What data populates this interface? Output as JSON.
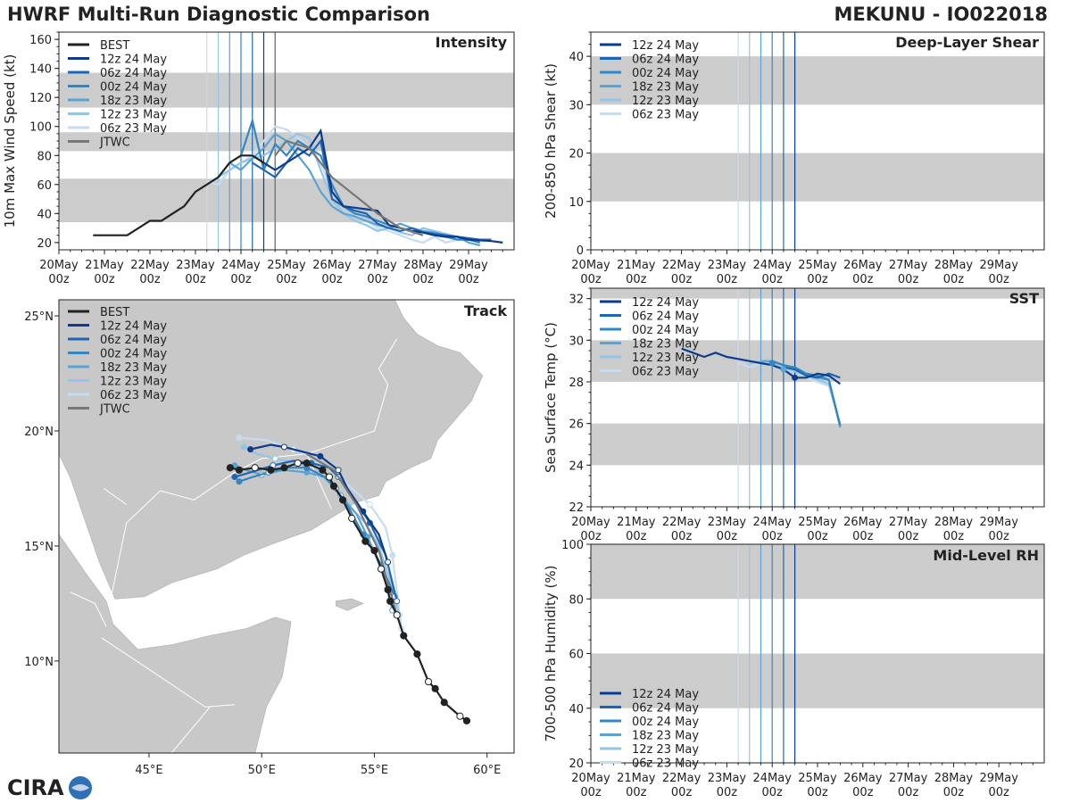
{
  "header": {
    "left_title": "HWRF Multi-Run Diagnostic Comparison",
    "right_title": "MEKUNU - IO022018"
  },
  "logo": {
    "text": "CIRA"
  },
  "colors": {
    "best": "#222222",
    "jtwc": "#777777",
    "band": "#cccccc",
    "runs": [
      "#0d3c8c",
      "#1f66b2",
      "#3586c0",
      "#5aa3d4",
      "#92c5e6",
      "#c6dcf0"
    ]
  },
  "runs": [
    "12z 24 May",
    "06z 24 May",
    "00z 24 May",
    "18z 23 May",
    "12z 23 May",
    "06z 23 May"
  ],
  "run_init_day": [
    4.5,
    4.25,
    4.0,
    3.75,
    3.5,
    3.25
  ],
  "time_axis": {
    "xlim": [
      0,
      10
    ],
    "day_labels": [
      "20May",
      "21May",
      "22May",
      "23May",
      "24May",
      "25May",
      "26May",
      "27May",
      "28May",
      "29May"
    ],
    "hour_label": "00z"
  },
  "chart_data": [
    {
      "id": "intensity",
      "type": "line",
      "title": "Intensity",
      "ylabel": "10m Max Wind Speed (kt)",
      "ylim": [
        15,
        165
      ],
      "yticks": [
        20,
        40,
        60,
        80,
        100,
        120,
        140,
        160
      ],
      "bands": [
        [
          34,
          64
        ],
        [
          83,
          96
        ],
        [
          113,
          137
        ]
      ],
      "legend": [
        "BEST",
        "12z 24 May",
        "06z 24 May",
        "00z 24 May",
        "18z 23 May",
        "12z 23 May",
        "06z 23 May",
        "JTWC"
      ],
      "best": {
        "name": "BEST",
        "x": [
          0.75,
          1,
          1.5,
          2,
          2.25,
          2.5,
          2.75,
          3,
          3.25,
          3.5,
          3.75,
          4,
          4.25,
          4.5
        ],
        "y": [
          25,
          25,
          25,
          35,
          35,
          40,
          45,
          55,
          60,
          65,
          75,
          80,
          80,
          75
        ]
      },
      "jtwc": {
        "name": "JTWC",
        "x": [
          4.75,
          5.0,
          5.5,
          6.0,
          7.0,
          7.5,
          8.0
        ],
        "y": [
          80,
          90,
          85,
          65,
          40,
          30,
          25
        ]
      },
      "series": [
        {
          "name": "12z 24 May",
          "x": [
            4.5,
            4.75,
            5,
            5.25,
            5.5,
            5.75,
            6,
            6.25,
            6.5,
            6.75,
            7,
            7.25,
            7.5,
            7.75,
            8,
            8.25,
            8.5,
            8.75,
            9,
            9.5,
            9.75
          ],
          "y": [
            75,
            70,
            75,
            80,
            85,
            97,
            55,
            45,
            44,
            43,
            42,
            32,
            30,
            28,
            27,
            25,
            24,
            24,
            22,
            21,
            20
          ]
        },
        {
          "name": "06z 24 May",
          "x": [
            4.25,
            4.5,
            4.75,
            5,
            5.25,
            5.5,
            5.75,
            6,
            6.25,
            6.5,
            6.75,
            7,
            7.25,
            7.5,
            7.75,
            8,
            8.25,
            8.5,
            8.75,
            9,
            9.25,
            9.5
          ],
          "y": [
            75,
            70,
            65,
            75,
            85,
            80,
            90,
            50,
            45,
            42,
            40,
            33,
            30,
            28,
            30,
            27,
            26,
            25,
            24,
            23,
            22,
            22
          ]
        },
        {
          "name": "00z 24 May",
          "x": [
            4,
            4.25,
            4.5,
            4.75,
            5,
            5.25,
            5.5,
            5.75,
            6,
            6.25,
            6.5,
            6.75,
            7,
            7.25,
            7.5,
            7.75,
            8,
            8.25,
            8.5,
            8.75,
            9,
            9.25
          ],
          "y": [
            80,
            104,
            70,
            88,
            80,
            90,
            85,
            80,
            60,
            45,
            40,
            38,
            35,
            32,
            30,
            28,
            27,
            25,
            24,
            22,
            22,
            20
          ]
        },
        {
          "name": "18z 23 May",
          "x": [
            3.75,
            4,
            4.25,
            4.5,
            4.75,
            5,
            5.25,
            5.5,
            5.75,
            6,
            6.25,
            6.5,
            6.75,
            7,
            7.25,
            7.5,
            7.75,
            8,
            8.25,
            8.5,
            8.75,
            9,
            9.25
          ],
          "y": [
            75,
            70,
            78,
            85,
            95,
            90,
            80,
            70,
            55,
            45,
            40,
            38,
            35,
            32,
            30,
            33,
            30,
            28,
            27,
            25,
            24,
            20,
            18
          ]
        },
        {
          "name": "12z 23 May",
          "x": [
            3.5,
            3.75,
            4,
            4.25,
            4.5,
            4.75,
            5,
            5.25,
            5.5,
            5.75,
            6,
            6.25,
            6.5,
            6.75,
            7,
            7.25,
            7.5,
            7.75,
            8,
            8.25,
            8.5,
            8.75
          ],
          "y": [
            65,
            70,
            75,
            78,
            80,
            85,
            90,
            95,
            92,
            70,
            50,
            40,
            35,
            32,
            28,
            30,
            27,
            25,
            30,
            28,
            26,
            24
          ]
        },
        {
          "name": "06z 23 May",
          "x": [
            3.25,
            3.5,
            3.75,
            4,
            4.25,
            4.5,
            4.75,
            5,
            5.25,
            5.5,
            5.75,
            6,
            6.25,
            6.5,
            6.75,
            7,
            7.25,
            7.5,
            7.75,
            8,
            8.25,
            8.5,
            8.75
          ],
          "y": [
            62,
            60,
            70,
            75,
            80,
            90,
            100,
            98,
            92,
            85,
            75,
            55,
            45,
            40,
            35,
            30,
            28,
            25,
            22,
            20,
            24,
            20,
            22
          ]
        }
      ]
    },
    {
      "id": "shear",
      "type": "line",
      "title": "Deep-Layer Shear",
      "ylabel": "200-850 hPa Shear (kt)",
      "ylim": [
        0,
        45
      ],
      "yticks": [
        0,
        10,
        20,
        30,
        40
      ],
      "bands": [
        [
          10,
          20
        ],
        [
          30,
          40
        ]
      ],
      "legend": [
        "12z 24 May",
        "06z 24 May",
        "00z 24 May",
        "18z 23 May",
        "12z 23 May",
        "06z 23 May"
      ],
      "series": []
    },
    {
      "id": "sst",
      "type": "line",
      "title": "SST",
      "ylabel": "Sea Surface Temp (°C)",
      "ylim": [
        22,
        32.5
      ],
      "yticks": [
        22,
        24,
        26,
        28,
        30,
        32
      ],
      "bands": [
        [
          24,
          26
        ],
        [
          28,
          30
        ],
        [
          32,
          33
        ]
      ],
      "legend": [
        "12z 24 May",
        "06z 24 May",
        "00z 24 May",
        "18z 23 May",
        "12z 23 May",
        "06z 23 May"
      ],
      "series": [
        {
          "name": "12z 24 May",
          "x": [
            2,
            2.25,
            2.5,
            2.75,
            3,
            3.25,
            3.5,
            3.75,
            4,
            4.25,
            4.5,
            4.75,
            5,
            5.25,
            5.5
          ],
          "y": [
            29.6,
            29.4,
            29.2,
            29.4,
            29.2,
            29.1,
            29.0,
            28.9,
            28.8,
            28.6,
            28.2,
            28.2,
            28.4,
            28.3,
            27.9
          ]
        },
        {
          "name": "06z 24 May",
          "x": [
            4.25,
            4.5,
            4.75,
            5,
            5.25,
            5.5
          ],
          "y": [
            28.7,
            28.6,
            28.3,
            28.2,
            28.4,
            28.2
          ]
        },
        {
          "name": "00z 24 May",
          "x": [
            4,
            4.25,
            4.5,
            4.75,
            5,
            5.25,
            5.5
          ],
          "y": [
            29.0,
            28.8,
            28.7,
            28.4,
            28.3,
            28.1,
            25.9
          ]
        },
        {
          "name": "18z 23 May",
          "x": [
            3.75,
            4,
            4.25,
            4.5,
            4.75,
            5,
            5.25,
            5.5
          ],
          "y": [
            29.0,
            29.0,
            28.8,
            28.6,
            28.3,
            28.2,
            28.1,
            25.8
          ]
        },
        {
          "name": "12z 23 May",
          "x": [
            3.5,
            3.75,
            4,
            4.25,
            4.5,
            4.75,
            5,
            5.25,
            5.5
          ],
          "y": [
            28.9,
            29.0,
            28.9,
            28.7,
            28.5,
            28.3,
            28.1,
            27.9,
            25.9
          ]
        },
        {
          "name": "06z 23 May",
          "x": [
            3.25,
            3.5,
            3.75,
            4,
            4.25,
            4.5,
            4.75,
            5,
            5.25,
            5.5
          ],
          "y": [
            28.9,
            28.7,
            28.9,
            28.8,
            28.6,
            28.5,
            28.2,
            28.0,
            27.8,
            26.0
          ]
        }
      ]
    },
    {
      "id": "rh",
      "type": "line",
      "title": "Mid-Level RH",
      "ylabel": "700-500 hPa Humidity (%)",
      "ylim": [
        20,
        100
      ],
      "yticks": [
        20,
        40,
        60,
        80,
        100
      ],
      "bands": [
        [
          40,
          60
        ],
        [
          80,
          100
        ]
      ],
      "legend": [
        "12z 24 May",
        "06z 24 May",
        "00z 24 May",
        "18z 23 May",
        "12z 23 May",
        "06z 23 May"
      ],
      "series": []
    },
    {
      "id": "track",
      "type": "scatter",
      "title": "Track",
      "xlim": [
        41,
        61.2
      ],
      "ylim": [
        6,
        25.7
      ],
      "xticks": [
        45,
        50,
        55,
        60
      ],
      "xtick_labels": [
        "45°E",
        "50°E",
        "55°E",
        "60°E"
      ],
      "yticks": [
        10,
        15,
        20,
        25
      ],
      "ytick_labels": [
        "10°N",
        "15°N",
        "20°N",
        "25°N"
      ],
      "legend": [
        "BEST",
        "12z 24 May",
        "06z 24 May",
        "00z 24 May",
        "18z 23 May",
        "12z 23 May",
        "06z 23 May",
        "JTWC"
      ],
      "best": {
        "name": "BEST",
        "lon": [
          59.1,
          58.8,
          58.1,
          57.7,
          57.4,
          56.9,
          56.3,
          56.0,
          55.7,
          55.6,
          55.3,
          55.0,
          54.6,
          54.0,
          53.6,
          53.2,
          53.0,
          52.7,
          52.0,
          51.6,
          51.0,
          50.4,
          49.7,
          49.0,
          48.6
        ],
        "lat": [
          7.4,
          7.6,
          8.2,
          8.8,
          9.1,
          10.3,
          11.1,
          12.0,
          12.6,
          13.1,
          14.0,
          14.8,
          15.2,
          16.2,
          17.0,
          17.6,
          18.0,
          18.3,
          18.6,
          18.6,
          18.4,
          18.3,
          18.4,
          18.3,
          18.4
        ]
      },
      "jtwc": {
        "name": "JTWC",
        "lon": [
          56.0,
          55.2,
          54.2,
          53.2,
          52.0
        ],
        "lat": [
          12.0,
          14.8,
          16.8,
          18.3,
          19.0
        ]
      },
      "series": [
        {
          "name": "12z 24 May",
          "lon": [
            55.6,
            55.2,
            54.5,
            53.8,
            53.4,
            53.0,
            52.6,
            51.8,
            51.0,
            50.4,
            49.5
          ],
          "lat": [
            14.3,
            15.5,
            16.5,
            17.5,
            18.3,
            18.6,
            18.9,
            19.1,
            19.3,
            19.4,
            19.2
          ]
        },
        {
          "name": "06z 24 May",
          "lon": [
            56.0,
            55.5,
            54.8,
            54.0,
            53.4,
            53.0,
            52.2,
            51.4,
            50.5,
            49.5,
            48.8
          ],
          "lat": [
            12.6,
            14.6,
            16.0,
            17.2,
            18.0,
            18.4,
            18.6,
            18.7,
            18.5,
            18.2,
            18.0
          ]
        },
        {
          "name": "00z 24 May",
          "lon": [
            55.9,
            55.3,
            54.5,
            53.9,
            53.3,
            52.8,
            52.0,
            51.2,
            50.3,
            49.6,
            49.0
          ],
          "lat": [
            12.8,
            14.2,
            15.5,
            16.6,
            17.5,
            18.0,
            18.4,
            18.4,
            18.2,
            18.0,
            17.8
          ]
        },
        {
          "name": "18z 23 May",
          "lon": [
            55.8,
            55.4,
            54.7,
            54.2,
            53.5,
            52.8,
            52.0,
            51.0,
            50.0,
            49.3,
            48.8
          ],
          "lat": [
            12.2,
            13.8,
            15.4,
            16.4,
            17.2,
            18.0,
            18.2,
            18.3,
            18.1,
            18.3,
            18.5
          ]
        },
        {
          "name": "12z 23 May",
          "lon": [
            56.1,
            55.7,
            55.2,
            54.6,
            53.8,
            53.2,
            52.4,
            51.6,
            50.6,
            49.8,
            49.2
          ],
          "lat": [
            12.0,
            13.5,
            15.0,
            16.0,
            16.8,
            17.6,
            18.2,
            18.6,
            18.8,
            19.0,
            19.3
          ]
        },
        {
          "name": "06z 23 May",
          "lon": [
            56.2,
            56.0,
            55.8,
            55.5,
            54.8,
            54.0,
            53.3,
            52.4,
            51.4,
            50.2,
            49.0
          ],
          "lat": [
            11.4,
            13.0,
            14.6,
            15.8,
            16.8,
            17.5,
            18.2,
            18.8,
            19.2,
            19.6,
            19.7
          ]
        }
      ]
    }
  ]
}
